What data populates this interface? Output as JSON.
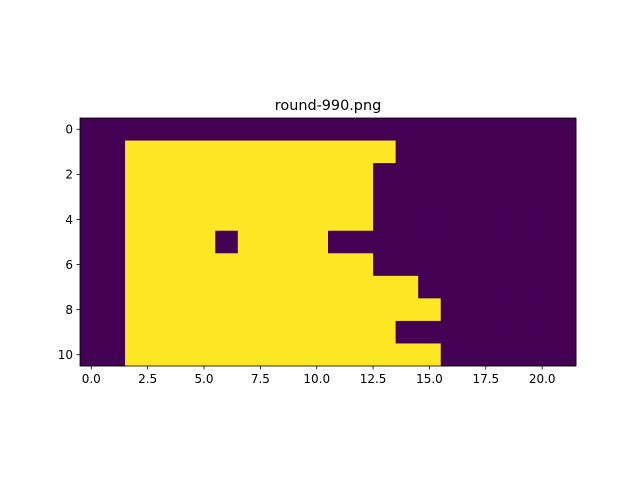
{
  "chart_data": {
    "type": "heatmap",
    "title": "round-990.png",
    "xlabel": "",
    "ylabel": "",
    "colormap": "viridis",
    "value_colors": {
      "0": "#440154",
      "1": "#fde725"
    },
    "xlim": [
      -0.5,
      21.5
    ],
    "ylim": [
      10.5,
      -0.5
    ],
    "x_ticks": [
      0.0,
      2.5,
      5.0,
      7.5,
      10.0,
      12.5,
      15.0,
      17.5,
      20.0
    ],
    "x_tick_labels": [
      "0.0",
      "2.5",
      "5.0",
      "7.5",
      "10.0",
      "12.5",
      "15.0",
      "17.5",
      "20.0"
    ],
    "y_ticks": [
      0,
      2,
      4,
      6,
      8,
      10
    ],
    "y_tick_labels": [
      "0",
      "2",
      "4",
      "6",
      "8",
      "10"
    ],
    "grid": false,
    "rows": 11,
    "cols": 22,
    "matrix": [
      [
        0,
        0,
        0,
        0,
        0,
        0,
        0,
        0,
        0,
        0,
        0,
        0,
        0,
        0,
        0,
        0,
        0,
        0,
        0,
        0,
        0,
        0
      ],
      [
        0,
        0,
        1,
        1,
        1,
        1,
        1,
        1,
        1,
        1,
        1,
        1,
        1,
        1,
        0,
        0,
        0,
        0,
        0,
        0,
        0,
        0
      ],
      [
        0,
        0,
        1,
        1,
        1,
        1,
        1,
        1,
        1,
        1,
        1,
        1,
        1,
        0,
        0,
        0,
        0,
        0,
        0,
        0,
        0,
        0
      ],
      [
        0,
        0,
        1,
        1,
        1,
        1,
        1,
        1,
        1,
        1,
        1,
        1,
        1,
        0,
        0,
        0,
        0,
        0,
        0,
        0,
        0,
        0
      ],
      [
        0,
        0,
        1,
        1,
        1,
        1,
        1,
        1,
        1,
        1,
        1,
        1,
        1,
        0,
        0,
        0,
        0,
        0,
        0,
        0,
        0,
        0
      ],
      [
        0,
        0,
        1,
        1,
        1,
        1,
        0,
        1,
        1,
        1,
        1,
        0,
        0,
        0,
        0,
        0,
        0,
        0,
        0,
        0,
        0,
        0
      ],
      [
        0,
        0,
        1,
        1,
        1,
        1,
        1,
        1,
        1,
        1,
        1,
        1,
        1,
        0,
        0,
        0,
        0,
        0,
        0,
        0,
        0,
        0
      ],
      [
        0,
        0,
        1,
        1,
        1,
        1,
        1,
        1,
        1,
        1,
        1,
        1,
        1,
        1,
        1,
        0,
        0,
        0,
        0,
        0,
        0,
        0
      ],
      [
        0,
        0,
        1,
        1,
        1,
        1,
        1,
        1,
        1,
        1,
        1,
        1,
        1,
        1,
        1,
        1,
        0,
        0,
        0,
        0,
        0,
        0
      ],
      [
        0,
        0,
        1,
        1,
        1,
        1,
        1,
        1,
        1,
        1,
        1,
        1,
        1,
        1,
        0,
        0,
        0,
        0,
        0,
        0,
        0,
        0
      ],
      [
        0,
        0,
        1,
        1,
        1,
        1,
        1,
        1,
        1,
        1,
        1,
        1,
        1,
        1,
        1,
        1,
        0,
        0,
        0,
        0,
        0,
        0
      ]
    ]
  }
}
